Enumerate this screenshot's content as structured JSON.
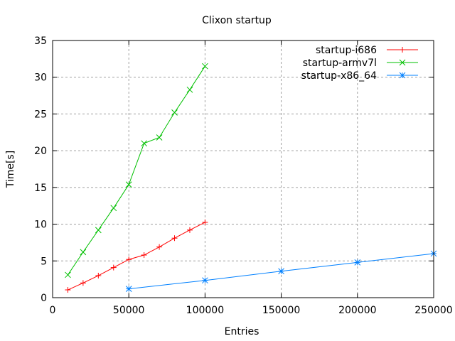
{
  "chart_data": {
    "type": "line",
    "title": "Clixon startup",
    "xlabel": "Entries",
    "ylabel": "Time[s]",
    "xlim": [
      0,
      250000
    ],
    "ylim": [
      0,
      35
    ],
    "xticks": [
      0,
      50000,
      100000,
      150000,
      200000,
      250000
    ],
    "yticks": [
      0,
      5,
      10,
      15,
      20,
      25,
      30,
      35
    ],
    "grid": true,
    "legend": "top-right",
    "series": [
      {
        "name": "startup-i686",
        "color": "#ff0000",
        "marker": "plus",
        "x": [
          10000,
          20000,
          30000,
          40000,
          50000,
          60000,
          70000,
          80000,
          90000,
          100000
        ],
        "y": [
          1.06,
          2.0,
          3.0,
          4.1,
          5.2,
          5.8,
          6.9,
          8.1,
          9.2,
          10.25
        ]
      },
      {
        "name": "startup-armv7l",
        "color": "#00c000",
        "marker": "cross",
        "x": [
          10000,
          20000,
          30000,
          40000,
          50000,
          60000,
          70000,
          80000,
          90000,
          100000
        ],
        "y": [
          3.1,
          6.2,
          9.2,
          12.2,
          15.4,
          21.0,
          21.8,
          25.2,
          28.3,
          31.5
        ]
      },
      {
        "name": "startup-x86_64",
        "color": "#0080ff",
        "marker": "star",
        "x": [
          50000,
          100000,
          150000,
          200000,
          250000
        ],
        "y": [
          1.2,
          2.35,
          3.6,
          4.8,
          6.0
        ]
      }
    ]
  }
}
